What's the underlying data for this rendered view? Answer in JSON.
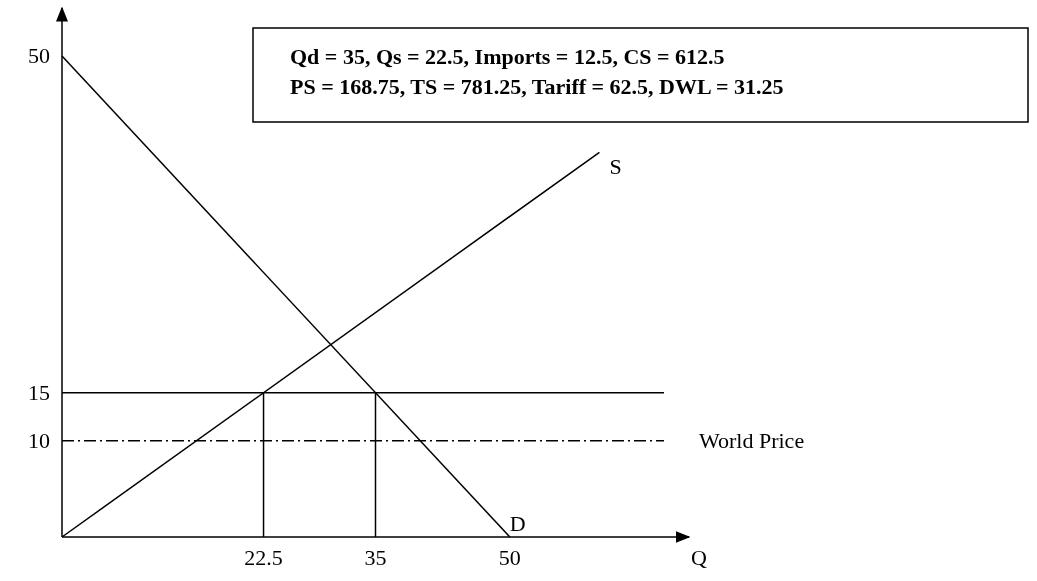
{
  "chart_data": {
    "type": "line",
    "xlabel": "Q",
    "xlim": [
      0,
      70
    ],
    "ylim": [
      0,
      55
    ],
    "xticks": [
      22.5,
      35,
      50
    ],
    "yticks": [
      10,
      15,
      50
    ],
    "grid": false,
    "series": [
      {
        "name": "D",
        "color": "#000000",
        "x": [
          0,
          50
        ],
        "values": [
          50,
          0
        ]
      },
      {
        "name": "S",
        "color": "#000000",
        "x": [
          0,
          60
        ],
        "values": [
          0,
          40
        ]
      },
      {
        "color": "#000000",
        "x": [
          22.5,
          22.5
        ],
        "values": [
          0,
          15
        ]
      },
      {
        "color": "#000000",
        "x": [
          35,
          35
        ],
        "values": [
          0,
          15
        ]
      }
    ],
    "ref_lines": [
      {
        "axis": "y",
        "value": 15,
        "label": null,
        "color": "#000000",
        "line_style": "solid"
      },
      {
        "axis": "y",
        "value": 10,
        "label": "World Price",
        "color": "#000000",
        "line_style": "dashed"
      }
    ],
    "annotations": [
      "Qd = 35, Qs = 22.5, Imports = 12.5, CS = 612.5",
      "PS = 168.75, TS = 781.25, Tariff = 62.5, DWL = 31.25"
    ]
  }
}
